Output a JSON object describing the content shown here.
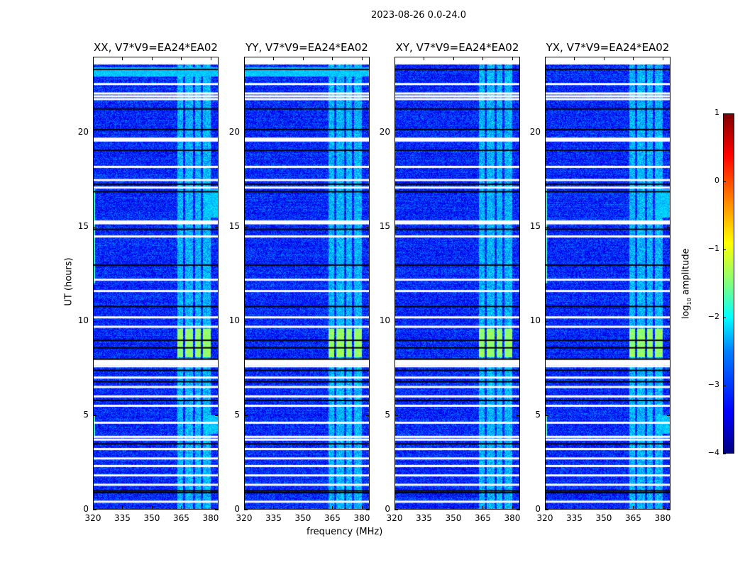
{
  "chart_data": {
    "type": "heatmap",
    "title": "2023-08-26 0.0-24.0",
    "xlabel": "frequency (MHz)",
    "ylabel": "UT (hours)",
    "xlim": [
      320,
      384
    ],
    "ylim": [
      0,
      24
    ],
    "xticks": [
      "320",
      "335",
      "350",
      "365",
      "380"
    ],
    "yticks": [
      "0",
      "5",
      "10",
      "15",
      "20"
    ],
    "panels": [
      {
        "title": "XX, V7*V9=EA24*EA02",
        "rfi_edge": true,
        "top_band": true
      },
      {
        "title": "YY, V7*V9=EA24*EA02",
        "rfi_edge": false,
        "top_band": true
      },
      {
        "title": "XY, V7*V9=EA24*EA02",
        "rfi_edge": false,
        "top_band": false
      },
      {
        "title": "YX, V7*V9=EA24*EA02",
        "rfi_edge": true,
        "top_band": false
      }
    ],
    "background_log10": -3.2,
    "bright_freq_bands_mhz": [
      [
        363,
        366
      ],
      [
        367,
        371
      ],
      [
        372,
        375
      ],
      [
        376,
        380
      ]
    ],
    "bright_band_log10": -2.5,
    "bright_time_block_hours": [
      8.1,
      9.6
    ],
    "bright_block_log10": -1.4,
    "flagged_hours_white": [
      23.7,
      22.6,
      22.1,
      21.95,
      21.8,
      19.7,
      19.6,
      18.2,
      17.5,
      17.1,
      15.3,
      15.2,
      14.5,
      12.2,
      11.6,
      10.2,
      9.7,
      7.9,
      7.8,
      7.7,
      7.6,
      7.0,
      6.5,
      6.0,
      5.5,
      4.6,
      3.85,
      3.7,
      3.2,
      2.7,
      2.3,
      1.8,
      1.3,
      0.4
    ],
    "flagged_hours_black": [
      23.4,
      21.3,
      20.2,
      19.1,
      17.3,
      16.9,
      14.9,
      13.0,
      10.8,
      9.0,
      8.6,
      8.0,
      7.4,
      6.8,
      5.8,
      3.5,
      1.0,
      0.9
    ],
    "colorbar": {
      "label": "log10 amplitude",
      "range": [
        -4,
        1
      ],
      "ticks": [
        "1",
        "0",
        "−1",
        "−2",
        "−3",
        "−4"
      ],
      "colormap": "jet"
    }
  }
}
